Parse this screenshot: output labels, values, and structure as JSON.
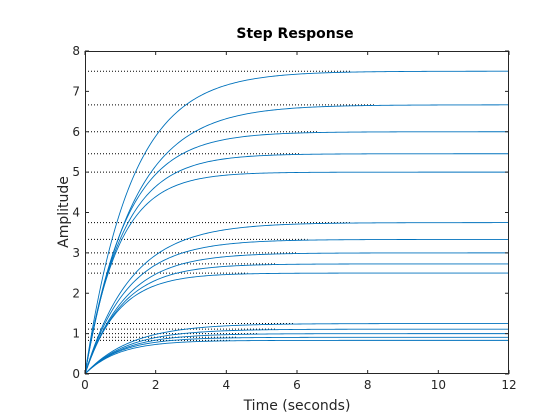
{
  "chart_data": {
    "type": "line",
    "title": "Step Response",
    "xlabel": "Time (seconds)",
    "ylabel": "Amplitude",
    "xlim": [
      0,
      12
    ],
    "ylim": [
      0,
      8
    ],
    "xticks": [
      0,
      2,
      4,
      6,
      8,
      10,
      12
    ],
    "yticks": [
      0,
      1,
      2,
      3,
      4,
      5,
      6,
      7,
      8
    ],
    "grid": false,
    "legend": "none",
    "line_color": "#0072BD",
    "axis_color": "#262626",
    "series": [
      {
        "final_value": 7.5,
        "time_constant": 1.3,
        "settling_time": 7.5
      },
      {
        "final_value": 6.667,
        "time_constant": 1.35,
        "settling_time": 8.2
      },
      {
        "final_value": 6.0,
        "time_constant": 1.15,
        "settling_time": 6.6
      },
      {
        "final_value": 5.455,
        "time_constant": 1.05,
        "settling_time": 6.1
      },
      {
        "final_value": 5.0,
        "time_constant": 0.95,
        "settling_time": 4.6
      },
      {
        "final_value": 3.75,
        "time_constant": 1.3,
        "settling_time": 7.5
      },
      {
        "final_value": 3.333,
        "time_constant": 1.2,
        "settling_time": 6.3
      },
      {
        "final_value": 3.0,
        "time_constant": 1.15,
        "settling_time": 6.0
      },
      {
        "final_value": 2.727,
        "time_constant": 1.05,
        "settling_time": 5.4
      },
      {
        "final_value": 2.5,
        "time_constant": 0.95,
        "settling_time": 4.6
      },
      {
        "final_value": 1.25,
        "time_constant": 1.3,
        "settling_time": 5.9
      },
      {
        "final_value": 1.111,
        "time_constant": 1.2,
        "settling_time": 5.4
      },
      {
        "final_value": 1.0,
        "time_constant": 1.1,
        "settling_time": 4.9
      },
      {
        "final_value": 0.909,
        "time_constant": 1.0,
        "settling_time": 4.3
      },
      {
        "final_value": 0.833,
        "time_constant": 0.95,
        "settling_time": 4.1
      }
    ]
  }
}
